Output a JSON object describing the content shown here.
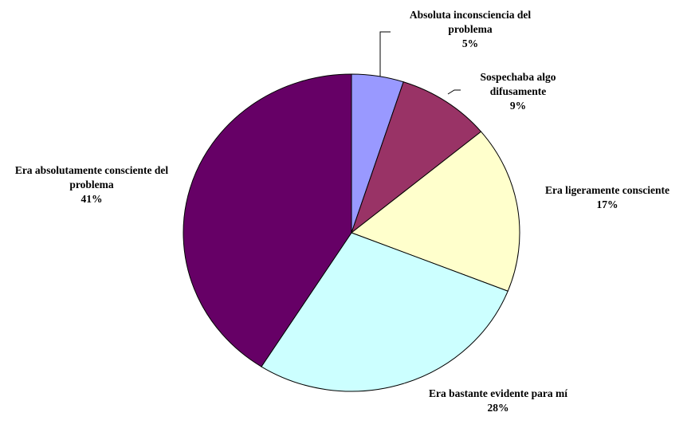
{
  "chart_data": {
    "type": "pie",
    "categories": [
      "Absoluta inconsciencia del problema",
      "Sospechaba algo difusamente",
      "Era ligeramente consciente",
      "Era bastante evidente para mí",
      "Era absolutamente consciente del problema"
    ],
    "values": [
      5,
      9,
      17,
      28,
      41
    ],
    "value_labels": [
      "5%",
      "9%",
      "17%",
      "28%",
      "41%"
    ],
    "colors": [
      "#9999ff",
      "#993366",
      "#ffffcc",
      "#ccffff",
      "#660066"
    ]
  }
}
